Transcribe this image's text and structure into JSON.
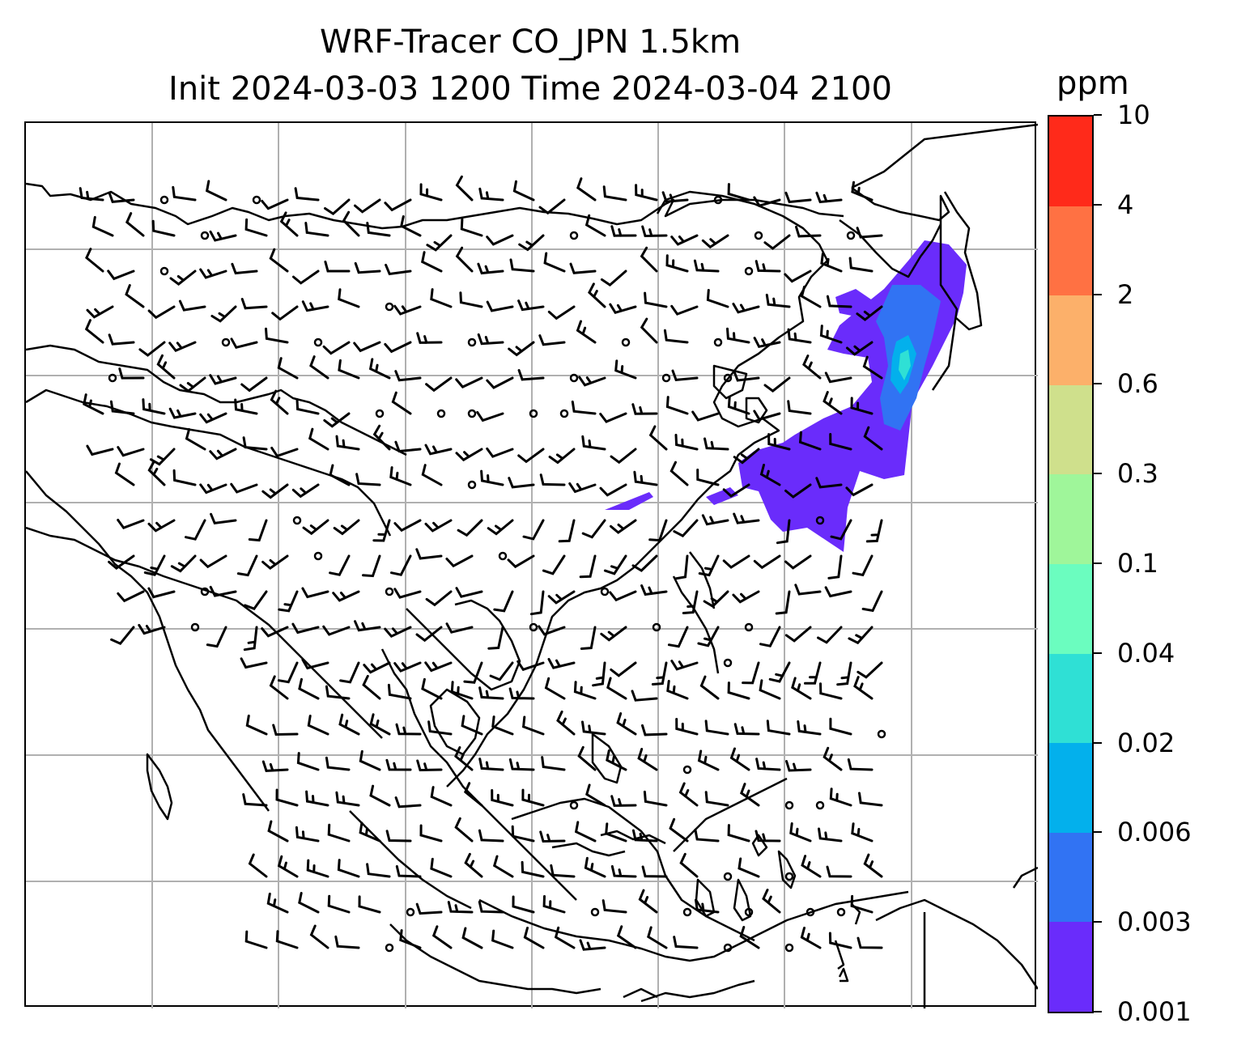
{
  "figure": {
    "title_line1": "WRF-Tracer CO_JPN 1.5km",
    "title_line2": "Init 2024-03-03 1200 Time 2024-03-04 2100"
  },
  "colorbar": {
    "unit": "ppm",
    "levels": [
      "0.001",
      "0.003",
      "0.006",
      "0.02",
      "0.04",
      "0.1",
      "0.3",
      "0.6",
      "2",
      "4",
      "10"
    ],
    "colors": [
      "#6a2cfb",
      "#3173f3",
      "#03b0ec",
      "#2fe0d5",
      "#6bfdbf",
      "#9ff69a",
      "#cfe08c",
      "#fcb06a",
      "#ff7143",
      "#ff2a1a"
    ]
  },
  "map": {
    "gridline_color": "#b0b0b0",
    "coastline_color": "#000000",
    "wind_barb_color": "#000000",
    "tracer_plume_region": "Japan and Korea, extending east over the Pacific",
    "gridlines": "on"
  }
}
